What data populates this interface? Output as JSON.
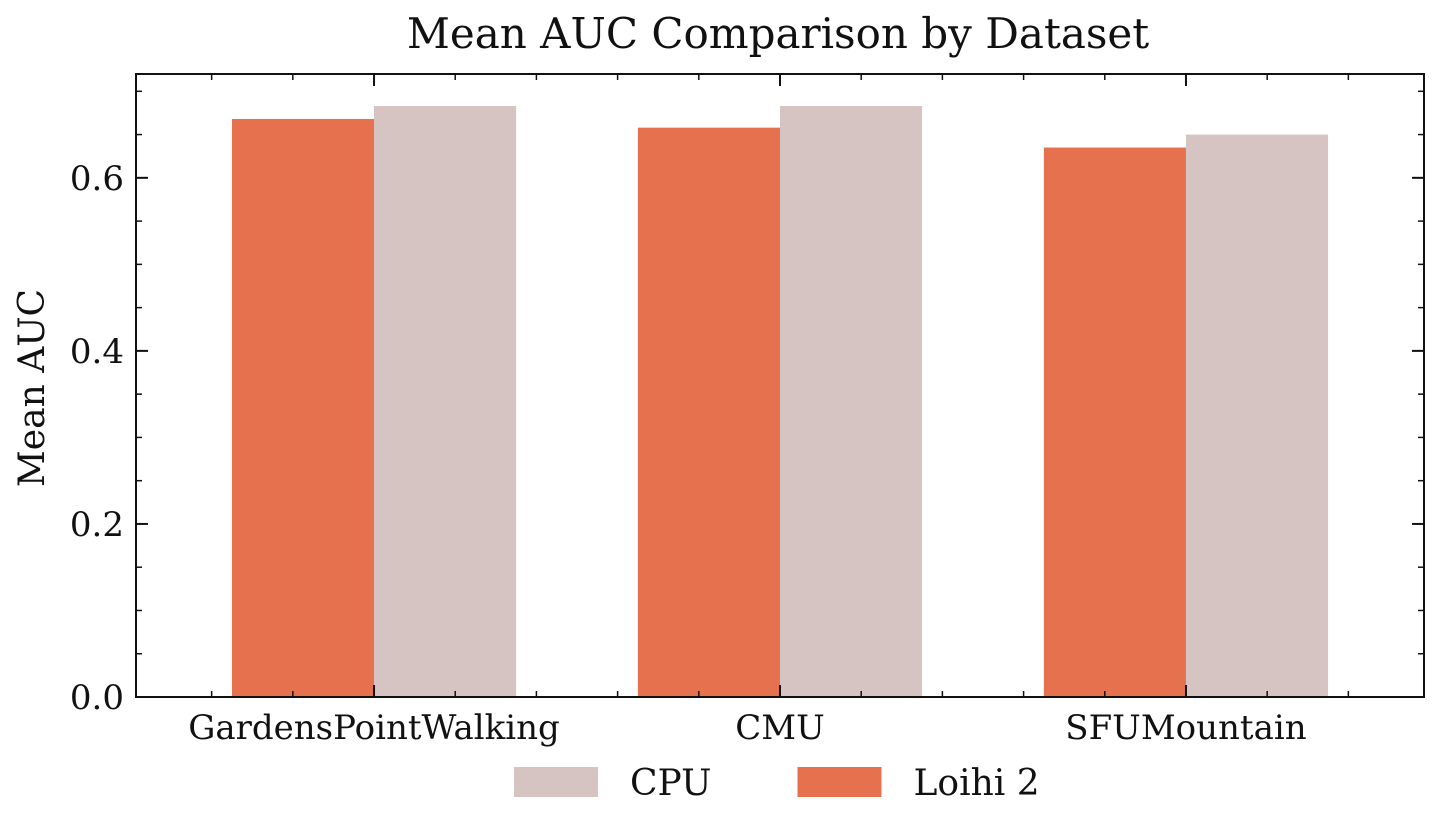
{
  "chart_data": {
    "type": "bar",
    "title": "Mean AUC Comparison by Dataset",
    "xlabel": "",
    "ylabel": "Mean AUC",
    "categories": [
      "GardensPointWalking",
      "CMU",
      "SFUMountain"
    ],
    "series": [
      {
        "name": "Loihi 2",
        "color": "#e6714e",
        "values": [
          0.668,
          0.658,
          0.635
        ]
      },
      {
        "name": "CPU",
        "color": "#d5c4c1",
        "values": [
          0.683,
          0.683,
          0.65
        ]
      }
    ],
    "legend_order": [
      "CPU",
      "Loihi 2"
    ],
    "ylim": [
      0,
      0.72
    ],
    "yticks": [
      0.0,
      0.2,
      0.4,
      0.6
    ],
    "ytick_labels": [
      "0.0",
      "0.2",
      "0.4",
      "0.6"
    ],
    "yminor_step": 0.05,
    "grid": false,
    "legend_position": "bottom-center"
  }
}
